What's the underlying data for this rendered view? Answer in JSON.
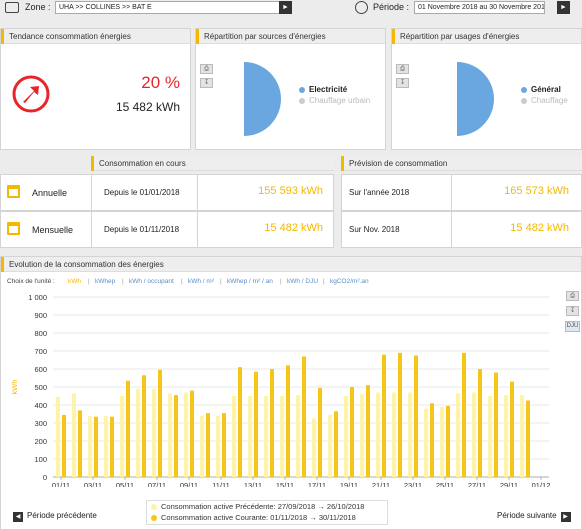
{
  "toolbar": {
    "zone_label": "Zone :",
    "zone_value": "UHA >> COLLINES >> BAT E",
    "period_label": "Période :",
    "period_value": "01 Novembre 2018 au 30 Novembre 2018"
  },
  "trend": {
    "title": "Tendance consommation énergies",
    "percent": "20 %",
    "value": "15 482 kWh",
    "arrow_color": "#e8252b"
  },
  "sources": {
    "title": "Répartition par sources d'énergies",
    "legend": [
      {
        "label": "Electricité",
        "color": "#6aa7e0",
        "active": true
      },
      {
        "label": "Chauffage urbain",
        "color": "#cccccc",
        "active": false
      }
    ]
  },
  "usages": {
    "title": "Répartition par usages d'énergies",
    "legend": [
      {
        "label": "Général",
        "color": "#6aa7e0",
        "active": true
      },
      {
        "label": "Chauffage",
        "color": "#cccccc",
        "active": false
      }
    ]
  },
  "current": {
    "title": "Consommation en cours",
    "rows": [
      {
        "label": "Annuelle",
        "since": "Depuis le 01/01/2018",
        "value": "155 593 kWh"
      },
      {
        "label": "Mensuelle",
        "since": "Depuis le 01/11/2018",
        "value": "15 482 kWh"
      }
    ]
  },
  "forecast": {
    "title": "Prévision de consommation",
    "rows": [
      {
        "label": "Sur l'année 2018",
        "value": "165 573 kWh"
      },
      {
        "label": "Sur Nov. 2018",
        "value": "15 482 kWh"
      }
    ]
  },
  "evolution": {
    "title": "Evolution de la consommation des énergies",
    "unit_prompt": "Choix de l'unité :",
    "units": [
      "kWh",
      "kWhep",
      "kWh / occupant",
      "kWh / m²",
      "kWhep / m² / an",
      "kWh / DJU",
      "kgCO2/m².an"
    ],
    "active_unit": "kWh",
    "dju_button": "DJU",
    "prev_button": "Période précédente",
    "next_button": "Période suivante"
  },
  "chart_data": {
    "type": "bar",
    "ylabel": "kWh",
    "y2label": "DJU",
    "ylim": [
      0,
      1000
    ],
    "yticks": [
      "0",
      "100",
      "200",
      "300",
      "400",
      "500",
      "600",
      "700",
      "800",
      "900",
      "1 000"
    ],
    "xticks": [
      "01/11",
      "03/11",
      "05/11",
      "07/11",
      "09/11",
      "11/11",
      "13/11",
      "15/11",
      "17/11",
      "19/11",
      "21/11",
      "23/11",
      "25/11",
      "27/11",
      "29/11",
      "01/12"
    ],
    "series": [
      {
        "name": "Consommation active Précédente: 27/09/2018 → 26/10/2018",
        "color": "#fff3a8",
        "values": [
          445,
          465,
          340,
          340,
          450,
          490,
          490,
          465,
          470,
          340,
          340,
          450,
          450,
          450,
          450,
          455,
          325,
          345,
          450,
          460,
          470,
          470,
          470,
          380,
          390,
          465,
          470,
          450,
          455,
          455,
          0
        ]
      },
      {
        "name": "Consommation active Courante: 01/11/2018 → 30/11/2018",
        "color": "#f5c518",
        "values": [
          345,
          370,
          335,
          335,
          535,
          565,
          595,
          455,
          480,
          355,
          355,
          610,
          585,
          600,
          620,
          670,
          495,
          365,
          500,
          510,
          680,
          690,
          675,
          410,
          395,
          690,
          600,
          580,
          530,
          425,
          0
        ]
      }
    ]
  }
}
